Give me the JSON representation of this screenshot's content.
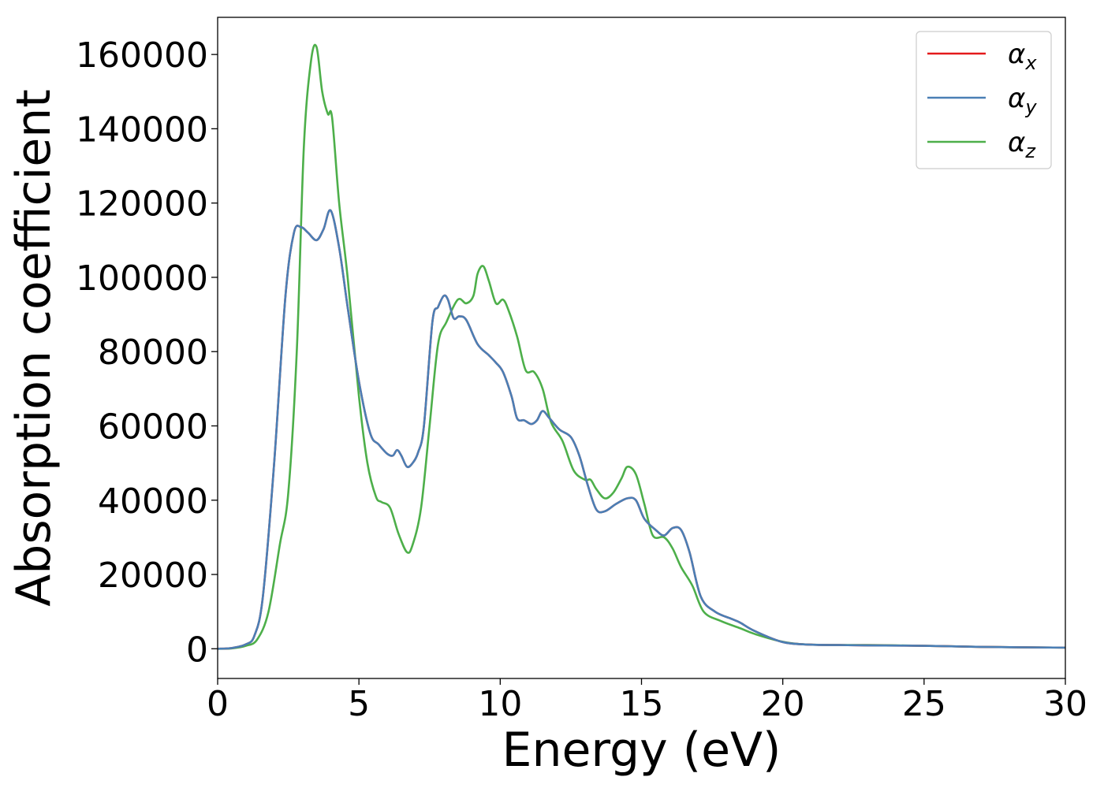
{
  "chart_data": {
    "type": "line",
    "title": "",
    "xlabel": "Energy (eV)",
    "ylabel": "Absorption coefficient",
    "xlim": [
      0,
      30
    ],
    "ylim": [
      -8000,
      170000
    ],
    "xticks": [
      0,
      5,
      10,
      15,
      20,
      25,
      30
    ],
    "xtick_labels": [
      "0",
      "5",
      "10",
      "15",
      "20",
      "25",
      "30"
    ],
    "yticks": [
      0,
      20000,
      40000,
      60000,
      80000,
      100000,
      120000,
      140000,
      160000
    ],
    "ytick_labels": [
      "0",
      "20000",
      "40000",
      "60000",
      "80000",
      "100000",
      "120000",
      "140000",
      "160000"
    ],
    "grid": false,
    "legend_position": "top-right",
    "series": [
      {
        "name": "αx",
        "color": "#e41a1c",
        "x": [
          0,
          0.5,
          1,
          1.3,
          1.6,
          2,
          2.4,
          2.7,
          2.95,
          3.2,
          3.5,
          3.75,
          4,
          4.3,
          4.6,
          5,
          5.4,
          5.7,
          6,
          6.2,
          6.35,
          6.5,
          6.7,
          6.9,
          7.1,
          7.3,
          7.6,
          7.8,
          8,
          8.15,
          8.35,
          8.55,
          8.8,
          9.2,
          9.6,
          9.85,
          10.1,
          10.4,
          10.6,
          10.85,
          11.1,
          11.3,
          11.5,
          11.75,
          12.1,
          12.5,
          12.8,
          13.1,
          13.4,
          13.7,
          14.1,
          14.5,
          14.8,
          15.1,
          15.5,
          15.8,
          16.1,
          16.4,
          16.7,
          17.1,
          17.6,
          18.2,
          18.5,
          19,
          20,
          21,
          22,
          23,
          25,
          27,
          30
        ],
        "y": [
          0,
          200,
          1200,
          3500,
          14000,
          50000,
          95000,
          112000,
          113500,
          112000,
          110000,
          113000,
          118000,
          108000,
          92000,
          72000,
          58000,
          55000,
          52500,
          52000,
          53500,
          52000,
          49000,
          50000,
          53000,
          60000,
          88000,
          92000,
          95000,
          94000,
          89000,
          89500,
          88500,
          82000,
          79000,
          77000,
          74500,
          68000,
          62000,
          61500,
          60500,
          61500,
          64000,
          62000,
          59000,
          57000,
          52000,
          44000,
          37500,
          37000,
          39000,
          40500,
          40000,
          35000,
          32000,
          30500,
          32500,
          32000,
          26000,
          14000,
          10000,
          8000,
          7000,
          4800,
          1800,
          1100,
          1000,
          900,
          800,
          500,
          300
        ]
      },
      {
        "name": "αy",
        "color": "#4a7fb5",
        "x": [
          0,
          0.5,
          1,
          1.3,
          1.6,
          2,
          2.4,
          2.7,
          2.95,
          3.2,
          3.5,
          3.75,
          4,
          4.3,
          4.6,
          5,
          5.4,
          5.7,
          6,
          6.2,
          6.35,
          6.5,
          6.7,
          6.9,
          7.1,
          7.3,
          7.6,
          7.8,
          8,
          8.15,
          8.35,
          8.55,
          8.8,
          9.2,
          9.6,
          9.85,
          10.1,
          10.4,
          10.6,
          10.85,
          11.1,
          11.3,
          11.5,
          11.75,
          12.1,
          12.5,
          12.8,
          13.1,
          13.4,
          13.7,
          14.1,
          14.5,
          14.8,
          15.1,
          15.5,
          15.8,
          16.1,
          16.4,
          16.7,
          17.1,
          17.6,
          18.2,
          18.5,
          19,
          20,
          21,
          22,
          23,
          25,
          27,
          30
        ],
        "y": [
          0,
          200,
          1200,
          3500,
          14000,
          50000,
          95000,
          112000,
          113500,
          112000,
          110000,
          113000,
          118000,
          108000,
          92000,
          72000,
          58000,
          55000,
          52500,
          52000,
          53500,
          52000,
          49000,
          50000,
          53000,
          60000,
          88000,
          92000,
          95000,
          94000,
          89000,
          89500,
          88500,
          82000,
          79000,
          77000,
          74500,
          68000,
          62000,
          61500,
          60500,
          61500,
          64000,
          62000,
          59000,
          57000,
          52000,
          44000,
          37500,
          37000,
          39000,
          40500,
          40000,
          35000,
          32000,
          30500,
          32500,
          32000,
          26000,
          14000,
          10000,
          8000,
          7000,
          4800,
          1800,
          1100,
          1000,
          900,
          800,
          500,
          300
        ]
      },
      {
        "name": "αz",
        "color": "#4daf4a",
        "x": [
          0,
          0.5,
          1,
          1.4,
          1.8,
          2.2,
          2.5,
          2.8,
          3.05,
          3.3,
          3.5,
          3.7,
          3.9,
          4.05,
          4.3,
          4.6,
          5,
          5.3,
          5.6,
          5.8,
          6.1,
          6.4,
          6.7,
          6.9,
          7.2,
          7.5,
          7.8,
          8.1,
          8.5,
          8.8,
          9.05,
          9.2,
          9.4,
          9.6,
          9.85,
          10.1,
          10.3,
          10.6,
          10.9,
          11.2,
          11.5,
          11.8,
          12.2,
          12.6,
          13,
          13.2,
          13.4,
          13.7,
          14,
          14.3,
          14.5,
          14.8,
          15.1,
          15.4,
          15.8,
          16.1,
          16.4,
          16.8,
          17.2,
          17.8,
          18.5,
          19,
          20,
          21,
          23,
          25,
          27,
          30
        ],
        "y": [
          0,
          100,
          800,
          2500,
          10000,
          28000,
          42000,
          80000,
          135000,
          158000,
          162000,
          150000,
          144000,
          143000,
          120000,
          100000,
          68000,
          50000,
          41000,
          39500,
          38000,
          31000,
          26000,
          28000,
          38000,
          60000,
          82000,
          88000,
          94000,
          93000,
          95000,
          101000,
          103000,
          99000,
          93000,
          94000,
          91000,
          84000,
          75000,
          74500,
          70000,
          61000,
          56000,
          48000,
          45500,
          45500,
          43000,
          40500,
          42000,
          46000,
          49000,
          47000,
          39000,
          30500,
          30000,
          27000,
          22000,
          17000,
          10000,
          7500,
          5500,
          4000,
          1900,
          1100,
          1000,
          800,
          500,
          300
        ]
      }
    ]
  }
}
